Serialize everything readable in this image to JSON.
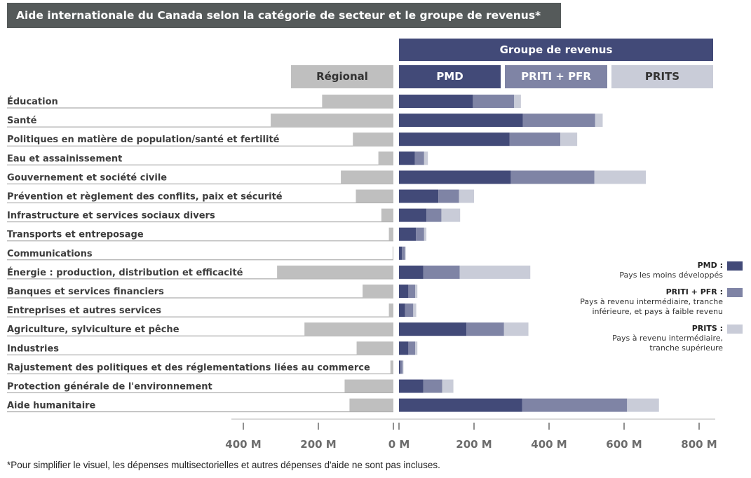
{
  "title": "Aide internationale du Canada selon la catégorie de secteur et le groupe de revenus*",
  "headers": {
    "income_group": "Groupe de revenus",
    "regional": "Régional",
    "pmd": "PMD",
    "priti_pfr": "PRITI + PFR",
    "prits": "PRITS"
  },
  "legend": [
    {
      "title": "PMD :",
      "desc": [
        "Pays les moins développés"
      ]
    },
    {
      "title": "PRITI + PFR :",
      "desc": [
        "Pays à revenu intermédiaire, tranche",
        "inférieure, et pays à faible revenu"
      ]
    },
    {
      "title": "PRITS :",
      "desc": [
        "Pays à revenu intermédiaire,",
        "tranche supérieure"
      ]
    }
  ],
  "footnote": "*Pour simplifier le visuel, les dépenses multisectorielles et autres dépenses d'aide ne sont pas incluses.",
  "colors": {
    "pmd": "#424a78",
    "priti_pfr": "#7f84a5",
    "prits": "#c9ccd8",
    "regional": "#bfbfbf",
    "title_bg": "#555a5a"
  },
  "chart_data": {
    "type": "bar",
    "orientation": "horizontal",
    "stacked": true,
    "unit": "M",
    "x_ticks": [
      "400 M",
      "200 M",
      "0 M",
      "200 M",
      "400 M",
      "600 M",
      "800 M"
    ],
    "x_tick_values": [
      -400,
      -200,
      0,
      200,
      400,
      600,
      800
    ],
    "categories": [
      "Éducation",
      "Santé",
      "Politiques en matière de population/santé et fertilité",
      "Eau et assainissement",
      "Gouvernement et société civile",
      "Prévention et règlement des conflits, paix et sécurité",
      "Infrastructure et services sociaux divers",
      "Transports et entreposage",
      "Communications",
      "Énergie : production, distribution et efficacité",
      "Banques et services financiers",
      "Entreprises et autres services",
      "Agriculture, sylviculture et pêche",
      "Industries",
      "Rajustement des politiques et des réglementations liées au commerce",
      "Protection générale de l'environnement",
      "Aide humanitaire"
    ],
    "series": [
      {
        "name": "Régional",
        "key": "regional",
        "values": [
          190,
          327,
          108,
          40,
          140,
          100,
          32,
          12,
          2,
          310,
          82,
          12,
          237,
          98,
          8,
          130,
          117
        ]
      },
      {
        "name": "PMD",
        "key": "pmd",
        "values": [
          197,
          330,
          295,
          42,
          298,
          105,
          73,
          45,
          8,
          65,
          25,
          16,
          180,
          25,
          4,
          65,
          328
        ]
      },
      {
        "name": "PRITI + PFR",
        "key": "priti_pfr",
        "values": [
          110,
          193,
          135,
          25,
          223,
          55,
          40,
          22,
          8,
          97,
          18,
          22,
          100,
          18,
          6,
          50,
          280
        ]
      },
      {
        "name": "PRITS",
        "key": "prits",
        "values": [
          18,
          20,
          45,
          10,
          137,
          40,
          50,
          6,
          2,
          188,
          6,
          8,
          65,
          6,
          2,
          30,
          85
        ]
      }
    ]
  }
}
